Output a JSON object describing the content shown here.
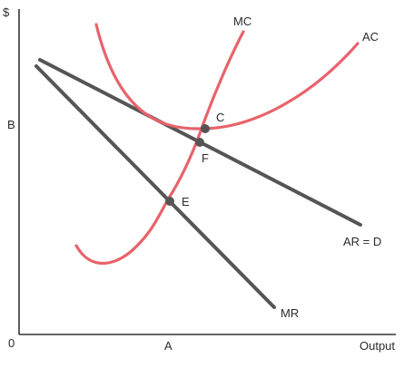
{
  "axes": {
    "y_label": "$",
    "x_label": "Output",
    "origin_label": "0"
  },
  "ticks": {
    "y_tick": "B",
    "x_tick": "A"
  },
  "curves": {
    "mc": "MC",
    "ac": "AC",
    "ar_d": "AR = D",
    "mr": "MR"
  },
  "points": {
    "c": "C",
    "f": "F",
    "e": "E"
  },
  "colors": {
    "cost_curves": "#e8636b",
    "revenue_lines": "#555555",
    "axes": "#333333",
    "points": "#555555"
  }
}
